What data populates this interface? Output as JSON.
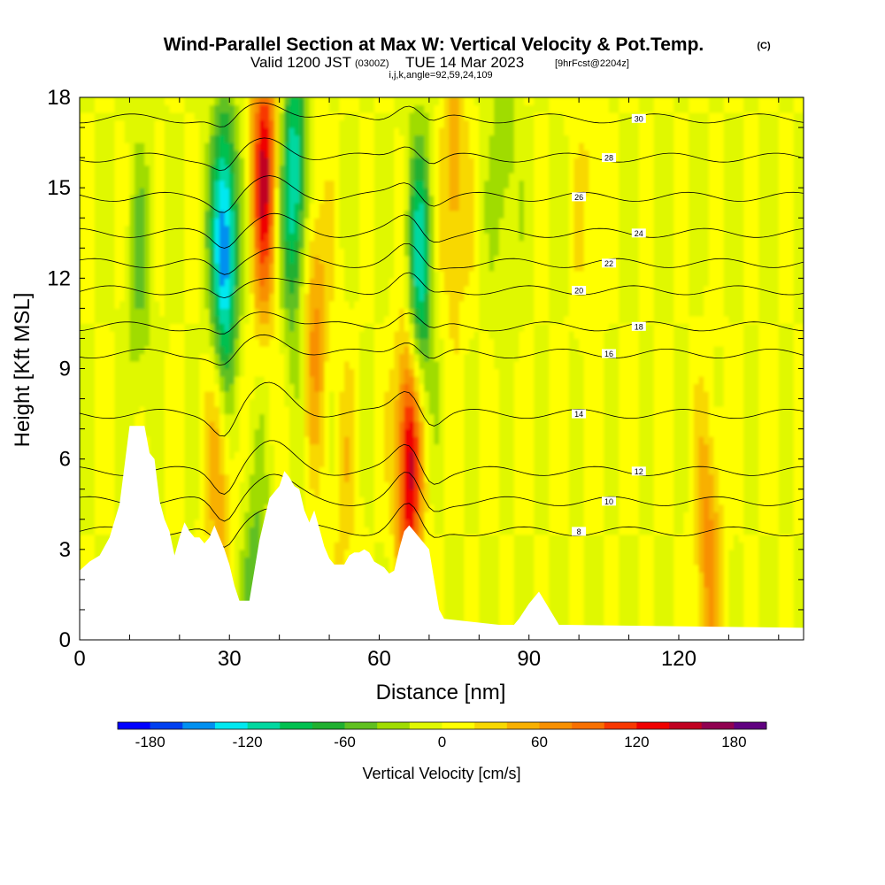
{
  "chart_data": {
    "type": "heatmap",
    "title": "Wind-Parallel Section at Max W: Vertical Velocity & Pot.Temp.",
    "title_mark": "(C)",
    "subtitle": {
      "prefix": "Valid 1200 JST",
      "utc": "(0300Z)",
      "date": "TUE 14 Mar 2023",
      "forecast": "[9hrFcst@2204z]"
    },
    "index_line": "i,j,k,angle=92,59,24,109",
    "xlabel": "Distance [nm]",
    "ylabel": "Height [Kft MSL]",
    "xlim": [
      0,
      145
    ],
    "ylim": [
      0,
      18
    ],
    "x_ticks": [
      0,
      30,
      60,
      90,
      120
    ],
    "y_ticks": [
      0,
      3,
      6,
      9,
      12,
      15,
      18
    ],
    "colorbar": {
      "title": "Vertical Velocity [cm/s]",
      "min": -200,
      "max": 200,
      "step": 20,
      "tick_labels": [
        "-180",
        "-120",
        "-60",
        "0",
        "60",
        "120",
        "180"
      ],
      "colors": [
        "#0000ff",
        "#0040f0",
        "#0090f0",
        "#00e8f0",
        "#00d8a0",
        "#00c050",
        "#20b030",
        "#60c020",
        "#a0dc00",
        "#e0f800",
        "#ffff00",
        "#f8d800",
        "#f8b000",
        "#f89000",
        "#f87000",
        "#f83800",
        "#f00000",
        "#c00020",
        "#900050",
        "#600080"
      ]
    },
    "velocity_regions": [
      {
        "x": 29,
        "y": 13,
        "w": -170
      },
      {
        "x": 37,
        "y": 15.5,
        "w": 140
      },
      {
        "x": 43,
        "y": 15,
        "w": -130
      },
      {
        "x": 47,
        "y": 11,
        "w": 70
      },
      {
        "x": 66,
        "y": 6,
        "w": 160
      },
      {
        "x": 68,
        "y": 12,
        "w": -120
      },
      {
        "x": 75,
        "y": 15,
        "w": 60
      },
      {
        "x": 28,
        "y": 5.5,
        "w": 60
      },
      {
        "x": 35,
        "y": 2,
        "w": -50
      },
      {
        "x": 53,
        "y": 5,
        "w": 30
      },
      {
        "x": 102,
        "y": 15,
        "w": 25
      },
      {
        "x": 126,
        "y": 3,
        "w": 70
      },
      {
        "x": 85,
        "y": 16,
        "w": -40
      },
      {
        "x": 12,
        "y": 12,
        "w": -40
      }
    ],
    "theta_contours": [
      {
        "label": "8",
        "height": 3.6
      },
      {
        "label": "10",
        "height": 4.6
      },
      {
        "label": "12",
        "height": 5.6
      },
      {
        "label": "14",
        "height": 7.5
      },
      {
        "label": "16",
        "height": 9.5
      },
      {
        "label": "18",
        "height": 10.4
      },
      {
        "label": "20",
        "height": 11.6
      },
      {
        "label": "22",
        "height": 12.5
      },
      {
        "label": "24",
        "height": 13.5
      },
      {
        "label": "26",
        "height": 14.7
      },
      {
        "label": "28",
        "height": 16
      },
      {
        "label": "30",
        "height": 17.3
      }
    ],
    "terrain": [
      [
        0,
        2.3
      ],
      [
        2,
        2.6
      ],
      [
        4,
        2.8
      ],
      [
        6,
        3.4
      ],
      [
        8,
        4.5
      ],
      [
        9,
        5.8
      ],
      [
        10,
        7.1
      ],
      [
        13,
        7.1
      ],
      [
        14,
        6.2
      ],
      [
        15,
        6.0
      ],
      [
        16,
        4.6
      ],
      [
        17,
        4.0
      ],
      [
        18,
        3.6
      ],
      [
        19,
        2.8
      ],
      [
        20,
        3.4
      ],
      [
        21,
        3.9
      ],
      [
        22,
        3.6
      ],
      [
        23,
        3.4
      ],
      [
        24,
        3.4
      ],
      [
        25,
        3.2
      ],
      [
        26,
        3.4
      ],
      [
        27,
        3.8
      ],
      [
        28,
        3.4
      ],
      [
        29,
        3.0
      ],
      [
        30,
        2.5
      ],
      [
        31,
        1.8
      ],
      [
        32,
        1.3
      ],
      [
        34,
        1.3
      ],
      [
        35,
        2.3
      ],
      [
        36,
        3.3
      ],
      [
        37,
        4.0
      ],
      [
        38,
        4.7
      ],
      [
        40,
        5.1
      ],
      [
        41,
        5.6
      ],
      [
        42,
        5.4
      ],
      [
        43,
        5.1
      ],
      [
        44,
        5.0
      ],
      [
        45,
        4.3
      ],
      [
        46,
        3.9
      ],
      [
        47,
        4.3
      ],
      [
        48,
        3.7
      ],
      [
        49,
        3.1
      ],
      [
        50,
        2.7
      ],
      [
        51,
        2.5
      ],
      [
        52,
        2.5
      ],
      [
        53,
        2.5
      ],
      [
        54,
        2.8
      ],
      [
        55,
        2.9
      ],
      [
        56,
        2.9
      ],
      [
        57,
        3.0
      ],
      [
        58,
        2.9
      ],
      [
        59,
        2.6
      ],
      [
        60,
        2.5
      ],
      [
        61,
        2.4
      ],
      [
        62,
        2.2
      ],
      [
        63,
        2.3
      ],
      [
        64,
        3.0
      ],
      [
        65,
        3.6
      ],
      [
        66,
        3.8
      ],
      [
        67,
        3.6
      ],
      [
        68,
        3.4
      ],
      [
        70,
        3.0
      ],
      [
        71,
        2.0
      ],
      [
        72,
        1.0
      ],
      [
        73,
        0.7
      ],
      [
        84,
        0.5
      ],
      [
        87,
        0.5
      ],
      [
        88,
        0.7
      ],
      [
        90,
        1.2
      ],
      [
        92,
        1.6
      ],
      [
        96,
        0.5
      ],
      [
        145,
        0.4
      ]
    ]
  }
}
